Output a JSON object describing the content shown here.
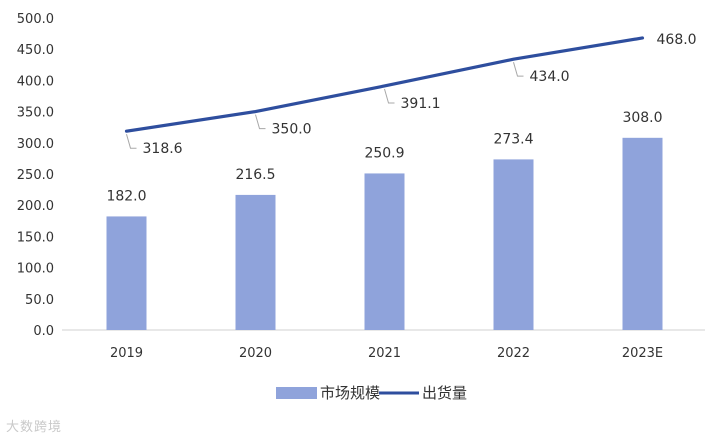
{
  "chart_data": {
    "type": "bar",
    "categories": [
      "2019",
      "2020",
      "2021",
      "2022",
      "2023E"
    ],
    "series": [
      {
        "name": "市场规模",
        "kind": "bar",
        "color": "#8FA3DB",
        "values": [
          182.0,
          216.5,
          250.9,
          273.4,
          308.0
        ],
        "labels": [
          "182.0",
          "216.5",
          "250.9",
          "273.4",
          "308.0"
        ]
      },
      {
        "name": "出货量",
        "kind": "line",
        "color": "#2E4E9E",
        "values": [
          318.6,
          350.0,
          391.1,
          434.0,
          468.0
        ],
        "labels": [
          "318.6",
          "350.0",
          "391.1",
          "434.0",
          "468.0"
        ]
      }
    ],
    "ylim": [
      0,
      500
    ],
    "yticks": [
      "0.0",
      "50.0",
      "100.0",
      "150.0",
      "200.0",
      "250.0",
      "300.0",
      "350.0",
      "400.0",
      "450.0",
      "500.0"
    ],
    "title": "",
    "xlabel": "",
    "ylabel": "",
    "grid": false,
    "legend_position": "bottom"
  },
  "watermark": "大数跨境"
}
